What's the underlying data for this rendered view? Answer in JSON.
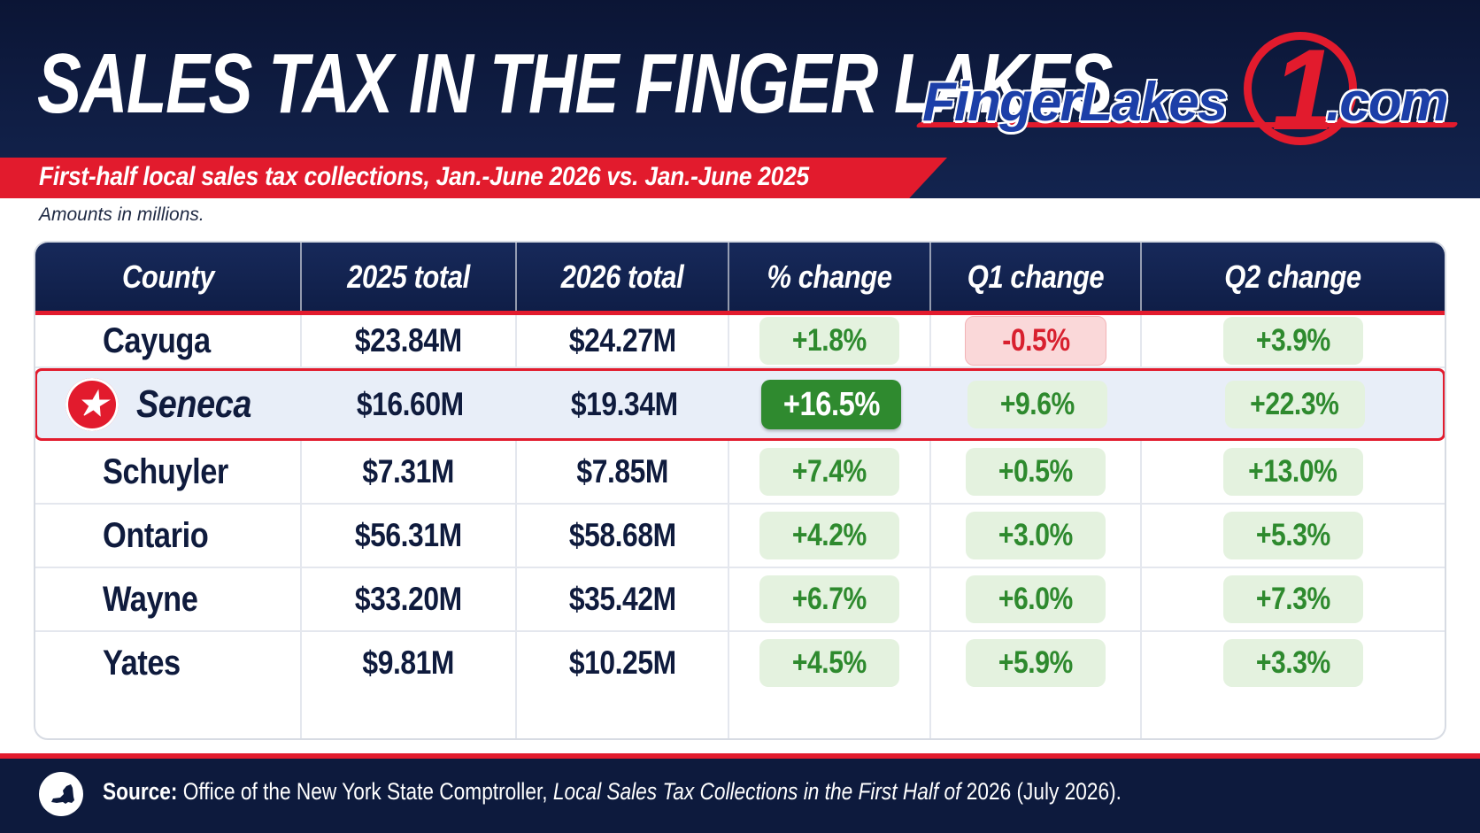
{
  "header": {
    "title": "SALES TAX IN THE FINGER LAKES",
    "subtitle": "First-half local sales tax collections, Jan.-June 2026 vs. Jan.-June 2025",
    "note": "Amounts in millions."
  },
  "logo": {
    "brand": "FingerLakes",
    "digit": "1",
    "tld": ".com"
  },
  "colors": {
    "navy": "#0d1a3d",
    "red": "#e21b2d",
    "positive": "#2e8a2e",
    "negative": "#d8202e"
  },
  "chart_data": {
    "type": "table",
    "columns": [
      "County",
      "2025 total",
      "2026 total",
      "% change",
      "Q1 change",
      "Q2 change"
    ],
    "rows": [
      {
        "county": "Cayuga",
        "total_2025": "$23.84M",
        "total_2026": "$24.27M",
        "pct_change": "+1.8%",
        "q1_change": "-0.5%",
        "q2_change": "+3.9%",
        "highlighted": false
      },
      {
        "county": "Seneca",
        "total_2025": "$16.60M",
        "total_2026": "$19.34M",
        "pct_change": "+16.5%",
        "q1_change": "+9.6%",
        "q2_change": "+22.3%",
        "highlighted": true
      },
      {
        "county": "Schuyler",
        "total_2025": "$7.31M",
        "total_2026": "$7.85M",
        "pct_change": "+7.4%",
        "q1_change": "+0.5%",
        "q2_change": "+13.0%",
        "highlighted": false
      },
      {
        "county": "Ontario",
        "total_2025": "$56.31M",
        "total_2026": "$58.68M",
        "pct_change": "+4.2%",
        "q1_change": "+3.0%",
        "q2_change": "+5.3%",
        "highlighted": false
      },
      {
        "county": "Wayne",
        "total_2025": "$33.20M",
        "total_2026": "$35.42M",
        "pct_change": "+6.7%",
        "q1_change": "+6.0%",
        "q2_change": "+7.3%",
        "highlighted": false
      },
      {
        "county": "Yates",
        "total_2025": "$9.81M",
        "total_2026": "$10.25M",
        "pct_change": "+4.5%",
        "q1_change": "+5.9%",
        "q2_change": "+3.3%",
        "highlighted": false
      }
    ]
  },
  "footer": {
    "source_label": "Source:",
    "source_text": "Office of the New York State Comptroller,",
    "source_title": "Local Sales Tax Collections in the First Half of",
    "source_tail": "2026 (July 2026).",
    "icon": "new-york-state-icon"
  }
}
